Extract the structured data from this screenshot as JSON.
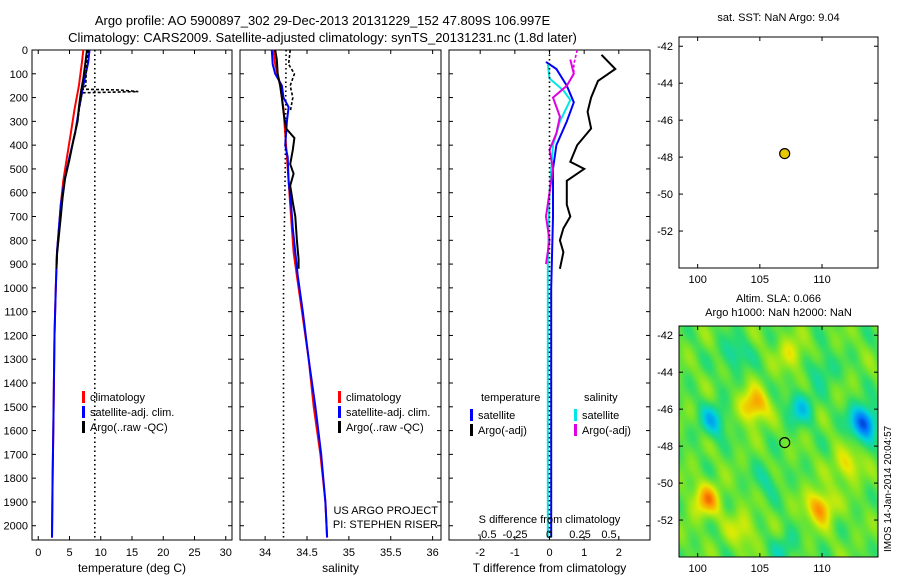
{
  "header": {
    "line1": "Argo profile: AO 5900897_302 29-Dec-2013 20131229_152 47.809S 106.997E",
    "line2": "Climatology: CARS2009. Satellite-adjusted climatology: synTS_20131231.nc (1.8d later)"
  },
  "colors": {
    "clim": "#ff0000",
    "sat": "#0000ff",
    "argo": "#000000",
    "sat2": "#00e5e5",
    "argo2": "#e000e0",
    "marker": "#e8c800"
  },
  "depth_axis": {
    "ticks": [
      0,
      100,
      200,
      300,
      400,
      500,
      600,
      700,
      800,
      900,
      1000,
      1100,
      1200,
      1300,
      1400,
      1500,
      1600,
      1700,
      1800,
      1900,
      2000
    ],
    "range": [
      0,
      2060
    ]
  },
  "chart_data": [
    {
      "id": "temperature",
      "type": "line",
      "xlabel": "temperature (deg C)",
      "xlim": [
        -1,
        31
      ],
      "xticks": [
        0,
        5,
        10,
        15,
        20,
        25,
        30
      ],
      "ylim": [
        2060,
        0
      ],
      "legend": {
        "placement": "bottom-center",
        "entries": [
          "climatology",
          "satellite-adj. clim.",
          "Argo(..raw -QC)"
        ]
      },
      "series": [
        {
          "name": "climatology",
          "color": "#ff0000",
          "style": "solid",
          "points": [
            [
              7.2,
              0
            ],
            [
              7.0,
              50
            ],
            [
              6.5,
              150
            ],
            [
              5.8,
              250
            ],
            [
              5.2,
              350
            ],
            [
              4.6,
              450
            ],
            [
              4.0,
              550
            ],
            [
              3.6,
              650
            ],
            [
              3.3,
              750
            ],
            [
              3.0,
              850
            ],
            [
              2.8,
              1000
            ],
            [
              2.6,
              1200
            ],
            [
              2.5,
              1400
            ],
            [
              2.4,
              1600
            ],
            [
              2.3,
              1800
            ],
            [
              2.2,
              2050
            ]
          ]
        },
        {
          "name": "satellite-adj. clim.",
          "color": "#0000ff",
          "style": "solid",
          "points": [
            [
              8.2,
              0
            ],
            [
              8.0,
              50
            ],
            [
              7.2,
              150
            ],
            [
              6.5,
              250
            ],
            [
              5.9,
              350
            ],
            [
              5.0,
              450
            ],
            [
              4.2,
              550
            ],
            [
              3.6,
              650
            ],
            [
              3.3,
              750
            ],
            [
              3.0,
              850
            ],
            [
              2.8,
              1000
            ],
            [
              2.6,
              1200
            ],
            [
              2.5,
              1400
            ],
            [
              2.4,
              1600
            ],
            [
              2.3,
              1800
            ],
            [
              2.2,
              2050
            ]
          ]
        },
        {
          "name": "Argo(..raw -QC)",
          "color": "#000000",
          "style": "solid",
          "points": [
            [
              7.8,
              0
            ],
            [
              7.6,
              40
            ],
            [
              7.2,
              120
            ],
            [
              6.8,
              180
            ],
            [
              6.5,
              240
            ],
            [
              6.3,
              300
            ],
            [
              5.6,
              380
            ],
            [
              5.0,
              460
            ],
            [
              4.3,
              540
            ],
            [
              3.9,
              620
            ],
            [
              3.6,
              700
            ],
            [
              3.3,
              780
            ],
            [
              3.0,
              860
            ],
            [
              2.9,
              920
            ]
          ]
        },
        {
          "name": "Argo raw",
          "color": "#000000",
          "style": "dash",
          "points": [
            [
              8.0,
              0
            ],
            [
              7.7,
              60
            ],
            [
              7.6,
              150
            ],
            [
              7.0,
              165
            ],
            [
              13,
              168
            ],
            [
              16,
              175
            ],
            [
              7.0,
              180
            ],
            [
              6.6,
              240
            ],
            [
              6.3,
              300
            ]
          ]
        },
        {
          "name": "SST",
          "color": "#000000",
          "style": "dot",
          "points": [
            [
              9.04,
              0
            ],
            [
              9.04,
              2050
            ]
          ]
        }
      ]
    },
    {
      "id": "salinity",
      "type": "line",
      "xlabel": "salinity",
      "xlim": [
        33.7,
        36.1
      ],
      "xticks": [
        34,
        34.5,
        35,
        35.5,
        36
      ],
      "ylim": [
        2060,
        0
      ],
      "legend": {
        "placement": "bottom-center",
        "entries": [
          "climatology",
          "satellite-adj. clim.",
          "Argo(..raw -QC)"
        ]
      },
      "annotation": [
        "US ARGO PROJECT",
        "PI: STEPHEN RISER"
      ],
      "series": [
        {
          "name": "climatology",
          "color": "#ff0000",
          "style": "solid",
          "points": [
            [
              34.1,
              0
            ],
            [
              34.12,
              60
            ],
            [
              34.18,
              150
            ],
            [
              34.22,
              250
            ],
            [
              34.24,
              350
            ],
            [
              34.26,
              450
            ],
            [
              34.28,
              550
            ],
            [
              34.3,
              650
            ],
            [
              34.32,
              750
            ],
            [
              34.34,
              850
            ],
            [
              34.38,
              950
            ],
            [
              34.44,
              1100
            ],
            [
              34.52,
              1300
            ],
            [
              34.58,
              1500
            ],
            [
              34.66,
              1700
            ],
            [
              34.72,
              1900
            ],
            [
              34.74,
              2050
            ]
          ]
        },
        {
          "name": "satellite-adj. clim.",
          "color": "#0000ff",
          "style": "solid",
          "points": [
            [
              34.08,
              0
            ],
            [
              34.09,
              60
            ],
            [
              34.12,
              100
            ],
            [
              34.2,
              150
            ],
            [
              34.22,
              200
            ],
            [
              34.28,
              240
            ],
            [
              34.26,
              300
            ],
            [
              34.25,
              350
            ],
            [
              34.24,
              400
            ],
            [
              34.27,
              450
            ],
            [
              34.28,
              550
            ],
            [
              34.31,
              650
            ],
            [
              34.33,
              750
            ],
            [
              34.36,
              850
            ],
            [
              34.39,
              950
            ],
            [
              34.45,
              1100
            ],
            [
              34.52,
              1300
            ],
            [
              34.6,
              1500
            ],
            [
              34.67,
              1700
            ],
            [
              34.72,
              1900
            ],
            [
              34.74,
              2050
            ]
          ]
        },
        {
          "name": "Argo(..raw -QC)",
          "color": "#000000",
          "style": "solid",
          "points": [
            [
              34.12,
              0
            ],
            [
              34.14,
              40
            ],
            [
              34.15,
              100
            ],
            [
              34.18,
              150
            ],
            [
              34.2,
              200
            ],
            [
              34.22,
              260
            ],
            [
              34.25,
              330
            ],
            [
              34.35,
              370
            ],
            [
              34.33,
              420
            ],
            [
              34.3,
              480
            ],
            [
              34.34,
              520
            ],
            [
              34.3,
              570
            ],
            [
              34.33,
              640
            ],
            [
              34.36,
              700
            ],
            [
              34.38,
              800
            ],
            [
              34.4,
              880
            ],
            [
              34.4,
              920
            ]
          ]
        },
        {
          "name": "Argo raw",
          "color": "#000000",
          "style": "dash",
          "points": [
            [
              34.3,
              0
            ],
            [
              34.28,
              60
            ],
            [
              34.35,
              100
            ],
            [
              34.3,
              150
            ],
            [
              34.33,
              200
            ],
            [
              34.3,
              260
            ]
          ]
        },
        {
          "name": "SSS",
          "color": "#000000",
          "style": "dot",
          "points": [
            [
              34.25,
              0
            ],
            [
              34.24,
              500
            ],
            [
              34.22,
              1000
            ],
            [
              34.22,
              2050
            ]
          ]
        }
      ]
    },
    {
      "id": "difference",
      "type": "line",
      "xlabel": "T difference from climatology",
      "xlabel_top": "S difference from climatology",
      "xlim": [
        -2.9,
        2.9
      ],
      "xticks": [
        -2,
        -1,
        0,
        1,
        2
      ],
      "top_ticks": [
        "-0.5",
        "-0.25",
        "0",
        "0.25",
        "0.5"
      ],
      "ylim": [
        2060,
        0
      ],
      "legend": {
        "placement": "bottom-center",
        "columns": [
          {
            "title": "temperature",
            "entries": [
              "satellite",
              "Argo(-adj)"
            ]
          },
          {
            "title": "salinity",
            "entries": [
              "satellite",
              "Argo(-adj)"
            ]
          }
        ]
      },
      "series": [
        {
          "name": "temperature satellite",
          "color": "#0000ff",
          "style": "solid",
          "points": [
            [
              -0.1,
              50
            ],
            [
              0.2,
              80
            ],
            [
              0.5,
              150
            ],
            [
              0.7,
              220
            ],
            [
              0.5,
              300
            ],
            [
              0.2,
              400
            ],
            [
              0.1,
              500
            ],
            [
              0.1,
              700
            ],
            [
              0.05,
              1000
            ],
            [
              0.05,
              2050
            ]
          ]
        },
        {
          "name": "temperature Argo(-adj)",
          "color": "#000000",
          "style": "solid",
          "points": [
            [
              1.5,
              20
            ],
            [
              1.9,
              80
            ],
            [
              1.6,
              110
            ],
            [
              1.4,
              130
            ],
            [
              1.2,
              200
            ],
            [
              1.1,
              260
            ],
            [
              1.2,
              330
            ],
            [
              0.8,
              400
            ],
            [
              0.6,
              470
            ],
            [
              1.0,
              500
            ],
            [
              0.5,
              550
            ],
            [
              0.5,
              650
            ],
            [
              0.6,
              700
            ],
            [
              0.4,
              750
            ],
            [
              0.3,
              800
            ],
            [
              0.4,
              850
            ],
            [
              0.3,
              920
            ]
          ]
        },
        {
          "name": "salinity satellite",
          "color": "#00e5e5",
          "style": "solid",
          "points": [
            [
              -0.05,
              60
            ],
            [
              0.0,
              120
            ],
            [
              0.4,
              170
            ],
            [
              0.6,
              210
            ],
            [
              0.3,
              300
            ],
            [
              0.1,
              400
            ],
            [
              0.0,
              600
            ],
            [
              -0.05,
              900
            ],
            [
              -0.05,
              1200
            ],
            [
              -0.05,
              2050
            ]
          ]
        },
        {
          "name": "salinity Argo(-adj)",
          "color": "#e000e0",
          "style": "solid",
          "points": [
            [
              0.6,
              40
            ],
            [
              0.7,
              100
            ],
            [
              0.5,
              150
            ],
            [
              0.1,
              200
            ],
            [
              0.3,
              280
            ],
            [
              0.2,
              350
            ],
            [
              0.0,
              420
            ],
            [
              0.1,
              500
            ],
            [
              0.0,
              600
            ],
            [
              -0.1,
              700
            ],
            [
              0.0,
              800
            ],
            [
              -0.1,
              900
            ]
          ]
        },
        {
          "name": "salinity Argo raw",
          "color": "#e000e0",
          "style": "dash",
          "points": [
            [
              0.8,
              0
            ],
            [
              0.7,
              60
            ],
            [
              0.7,
              100
            ]
          ]
        },
        {
          "name": "zero line",
          "color": "#000000",
          "style": "dot",
          "points": [
            [
              0,
              0
            ],
            [
              0,
              2050
            ]
          ]
        }
      ]
    },
    {
      "id": "location_sst",
      "type": "scatter",
      "title": "sat. SST: NaN Argo: 9.04",
      "xlim": [
        98.5,
        114.5
      ],
      "ylim": [
        -54,
        -41.5
      ],
      "xticks": [
        100,
        105,
        110
      ],
      "yticks": [
        -42,
        -44,
        -46,
        -48,
        -50,
        -52
      ],
      "points": [
        {
          "x": 106.997,
          "y": -47.809
        }
      ]
    },
    {
      "id": "location_sla",
      "type": "heatmap",
      "title_lines": [
        "Altim. SLA: 0.066",
        "Argo h1000: NaN h2000: NaN"
      ],
      "xlim": [
        98.5,
        114.5
      ],
      "ylim": [
        -54,
        -41.5
      ],
      "xticks": [
        100,
        105,
        110
      ],
      "yticks": [
        -42,
        -44,
        -46,
        -48,
        -50,
        -52
      ],
      "points": [
        {
          "x": 106.997,
          "y": -47.809
        }
      ],
      "blobs": [
        {
          "x": 104.5,
          "y": -45.8,
          "value": 0.3
        },
        {
          "x": 100.7,
          "y": -50.9,
          "value": 0.28
        },
        {
          "x": 109.8,
          "y": -51.3,
          "value": 0.3
        },
        {
          "x": 107.5,
          "y": -43.0,
          "value": 0.15
        },
        {
          "x": 112.0,
          "y": -49.0,
          "value": 0.18
        },
        {
          "x": 103.5,
          "y": -52.5,
          "value": 0.15
        },
        {
          "x": 113.3,
          "y": -46.7,
          "value": -0.42
        },
        {
          "x": 101.2,
          "y": -46.6,
          "value": -0.22
        },
        {
          "x": 108.2,
          "y": -45.9,
          "value": -0.2
        },
        {
          "x": 103.0,
          "y": -43.0,
          "value": -0.15
        },
        {
          "x": 107.0,
          "y": -53.5,
          "value": -0.12
        },
        {
          "x": 110.0,
          "y": -43.8,
          "value": -0.12
        },
        {
          "x": 105.5,
          "y": -49.8,
          "value": -0.1
        }
      ]
    }
  ],
  "stamp": "IMOS 14-Jan-2014 20:04:57"
}
